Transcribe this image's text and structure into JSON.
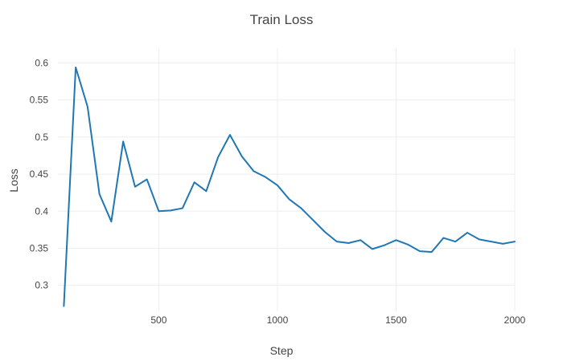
{
  "chart_data": {
    "type": "line",
    "title": "Train Loss",
    "xlabel": "Step",
    "ylabel": "Loss",
    "xlim": [
      75,
      2000
    ],
    "ylim": [
      0.265,
      0.62
    ],
    "xticks": [
      500,
      1000,
      1500,
      2000
    ],
    "xtick_labels": [
      "500",
      "1000",
      "1500",
      "2000"
    ],
    "yticks": [
      0.3,
      0.35,
      0.4,
      0.45,
      0.5,
      0.55,
      0.6
    ],
    "ytick_labels": [
      "0.3",
      "0.35",
      "0.4",
      "0.45",
      "0.5",
      "0.55",
      "0.6"
    ],
    "grid": true,
    "line_color": "#1f77b4",
    "series": [
      {
        "x": [
          100,
          150,
          200,
          250,
          300,
          350,
          400,
          450,
          500,
          550,
          600,
          650,
          700,
          750,
          800,
          850,
          900,
          950,
          1000,
          1050,
          1100,
          1150,
          1200,
          1250,
          1300,
          1350,
          1400,
          1450,
          1500,
          1550,
          1600,
          1650,
          1700,
          1750,
          1800,
          1850,
          1900,
          1950,
          2000
        ],
        "y": [
          0.272,
          0.594,
          0.541,
          0.423,
          0.386,
          0.494,
          0.433,
          0.443,
          0.4,
          0.401,
          0.404,
          0.439,
          0.427,
          0.473,
          0.503,
          0.474,
          0.454,
          0.446,
          0.435,
          0.416,
          0.404,
          0.388,
          0.372,
          0.359,
          0.357,
          0.361,
          0.349,
          0.354,
          0.361,
          0.355,
          0.346,
          0.345,
          0.364,
          0.359,
          0.371,
          0.362,
          0.359,
          0.356,
          0.359
        ]
      }
    ]
  }
}
